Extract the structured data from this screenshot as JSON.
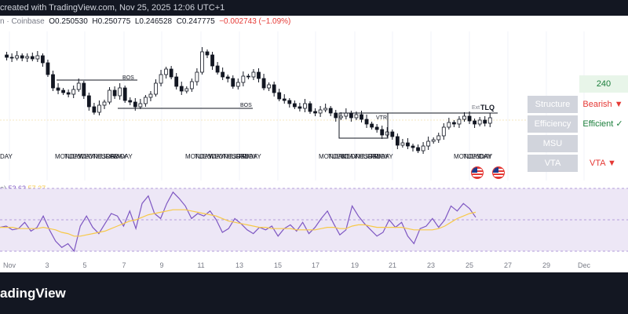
{
  "header": {
    "title": "created with TradingView.com, Nov 25, 2025 12:06 UTC+1"
  },
  "legend": {
    "source": "n · Coinbase",
    "open_label": "O",
    "open": "0.250530",
    "high_label": "H",
    "high": "0.250775",
    "low_label": "L",
    "low": "0.246528",
    "close_label": "C",
    "close": "0.247775",
    "change": "−0.002743 (−1.09%)"
  },
  "chart_data": {
    "type": "candlestick",
    "x": [
      "Nov",
      "3",
      "5",
      "7",
      "9",
      "11",
      "13",
      "15",
      "17",
      "19",
      "21",
      "23",
      "25",
      "27",
      "29",
      "Dec"
    ],
    "annotations": [
      "BOS",
      "BOS",
      "VTR",
      "Ext",
      "TLQ"
    ],
    "day_labels": [
      "DAY",
      "MONDAY",
      "TUESDAY",
      "WEDNESDAY",
      "THURSDAY",
      "FRIDAY",
      "MONDAY",
      "TUESDAY",
      "WEDNESDAY",
      "THURSDAY",
      "FRIDAY",
      "MONDAY",
      "TUESDAY",
      "WEDNESDAY",
      "THURSDAY",
      "FRIDAY",
      "MONDAY",
      "TUESDAY",
      "DAY"
    ],
    "grid": true,
    "colors": {
      "up": "#131722",
      "down": "#131722",
      "bos_line": "#131722"
    }
  },
  "rsi": {
    "label": "e)",
    "value1": "53.63",
    "value2": "57.27",
    "series": [
      {
        "name": "RSI",
        "color": "#7e57c2",
        "values": [
          49,
          50,
          47,
          48,
          53,
          46,
          49,
          58,
          47,
          38,
          33,
          36,
          30,
          50,
          58,
          49,
          44,
          52,
          60,
          58,
          50,
          62,
          48,
          68,
          74,
          60,
          56,
          68,
          77,
          72,
          66,
          56,
          60,
          58,
          62,
          55,
          45,
          48,
          56,
          52,
          47,
          44,
          49,
          47,
          50,
          42,
          48,
          51,
          46,
          53,
          44,
          49,
          56,
          62,
          52,
          43,
          47,
          66,
          58,
          52,
          47,
          42,
          45,
          55,
          49,
          53,
          42,
          36,
          48,
          50,
          56,
          49,
          55,
          66,
          62,
          68,
          64,
          57
        ]
      },
      {
        "name": "MA",
        "color": "#f7c948",
        "values": [
          49,
          49,
          49,
          48,
          48,
          48,
          48,
          49,
          48,
          47,
          45,
          44,
          42,
          42,
          43,
          44,
          45,
          46,
          48,
          50,
          52,
          54,
          55,
          57,
          59,
          60,
          61,
          62,
          63,
          63,
          63,
          62,
          61,
          60,
          59,
          58,
          56,
          54,
          53,
          52,
          51,
          50,
          49,
          49,
          48,
          48,
          48,
          48,
          47,
          47,
          47,
          47,
          48,
          49,
          49,
          48,
          48,
          50,
          51,
          51,
          50,
          49,
          49,
          49,
          49,
          49,
          48,
          47,
          47,
          47,
          47,
          48,
          50,
          53,
          56,
          58,
          60,
          61
        ]
      }
    ]
  },
  "table": {
    "timeframe": "240",
    "rows": [
      {
        "label": "Structure",
        "value": "Bearish ▼",
        "color": "#e53935"
      },
      {
        "label": "Efficiency",
        "value": "Efficient ✓",
        "color": "#1b7e3b"
      },
      {
        "label": "MSU",
        "value": "",
        "color": "#131722"
      },
      {
        "label": "VTA",
        "value": "VTA ▼",
        "color": "#e53935"
      }
    ]
  },
  "footer": {
    "brand": "adingView"
  }
}
